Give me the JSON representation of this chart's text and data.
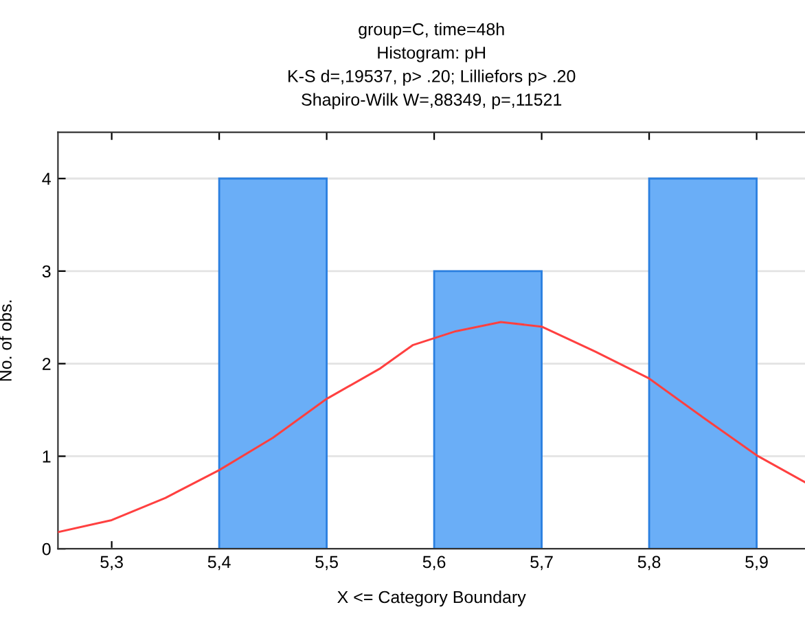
{
  "chart_data": {
    "type": "histogram",
    "title": "group=C, time=48h\nHistogram: pH\nK-S d=,19537, p> .20; Lilliefors p> .20\nShapiro-Wilk W=,88349, p=,11521",
    "xlabel": "X <= Category Boundary",
    "ylabel": "No. of obs.",
    "bins": [
      5.4,
      5.5,
      5.6,
      5.7,
      5.8,
      5.9
    ],
    "values": [
      4,
      0,
      3,
      0,
      4
    ],
    "color": "#6aaef7",
    "series": [
      {
        "type": "line",
        "color": "#ff4040",
        "x": [
          5.25,
          5.3,
          5.35,
          5.4,
          5.45,
          5.5,
          5.55,
          5.58,
          5.62,
          5.662,
          5.7,
          5.75,
          5.8,
          5.85,
          5.9,
          5.945
        ],
        "values": [
          0.18,
          0.31,
          0.55,
          0.85,
          1.2,
          1.62,
          1.95,
          2.2,
          2.35,
          2.45,
          2.4,
          2.13,
          1.84,
          1.42,
          1.01,
          0.72
        ]
      }
    ],
    "xlim": [
      5.25,
      5.945
    ],
    "ylim": [
      0,
      4.5
    ],
    "xticks": [
      {
        "value": 5.3,
        "label": "5,3"
      },
      {
        "value": 5.4,
        "label": "5,4"
      },
      {
        "value": 5.5,
        "label": "5,5"
      },
      {
        "value": 5.6,
        "label": "5,6"
      },
      {
        "value": 5.7,
        "label": "5,7"
      },
      {
        "value": 5.8,
        "label": "5,8"
      },
      {
        "value": 5.9,
        "label": "5,9"
      }
    ],
    "yticks": [
      0,
      1,
      2,
      3,
      4
    ],
    "grid": "y"
  }
}
